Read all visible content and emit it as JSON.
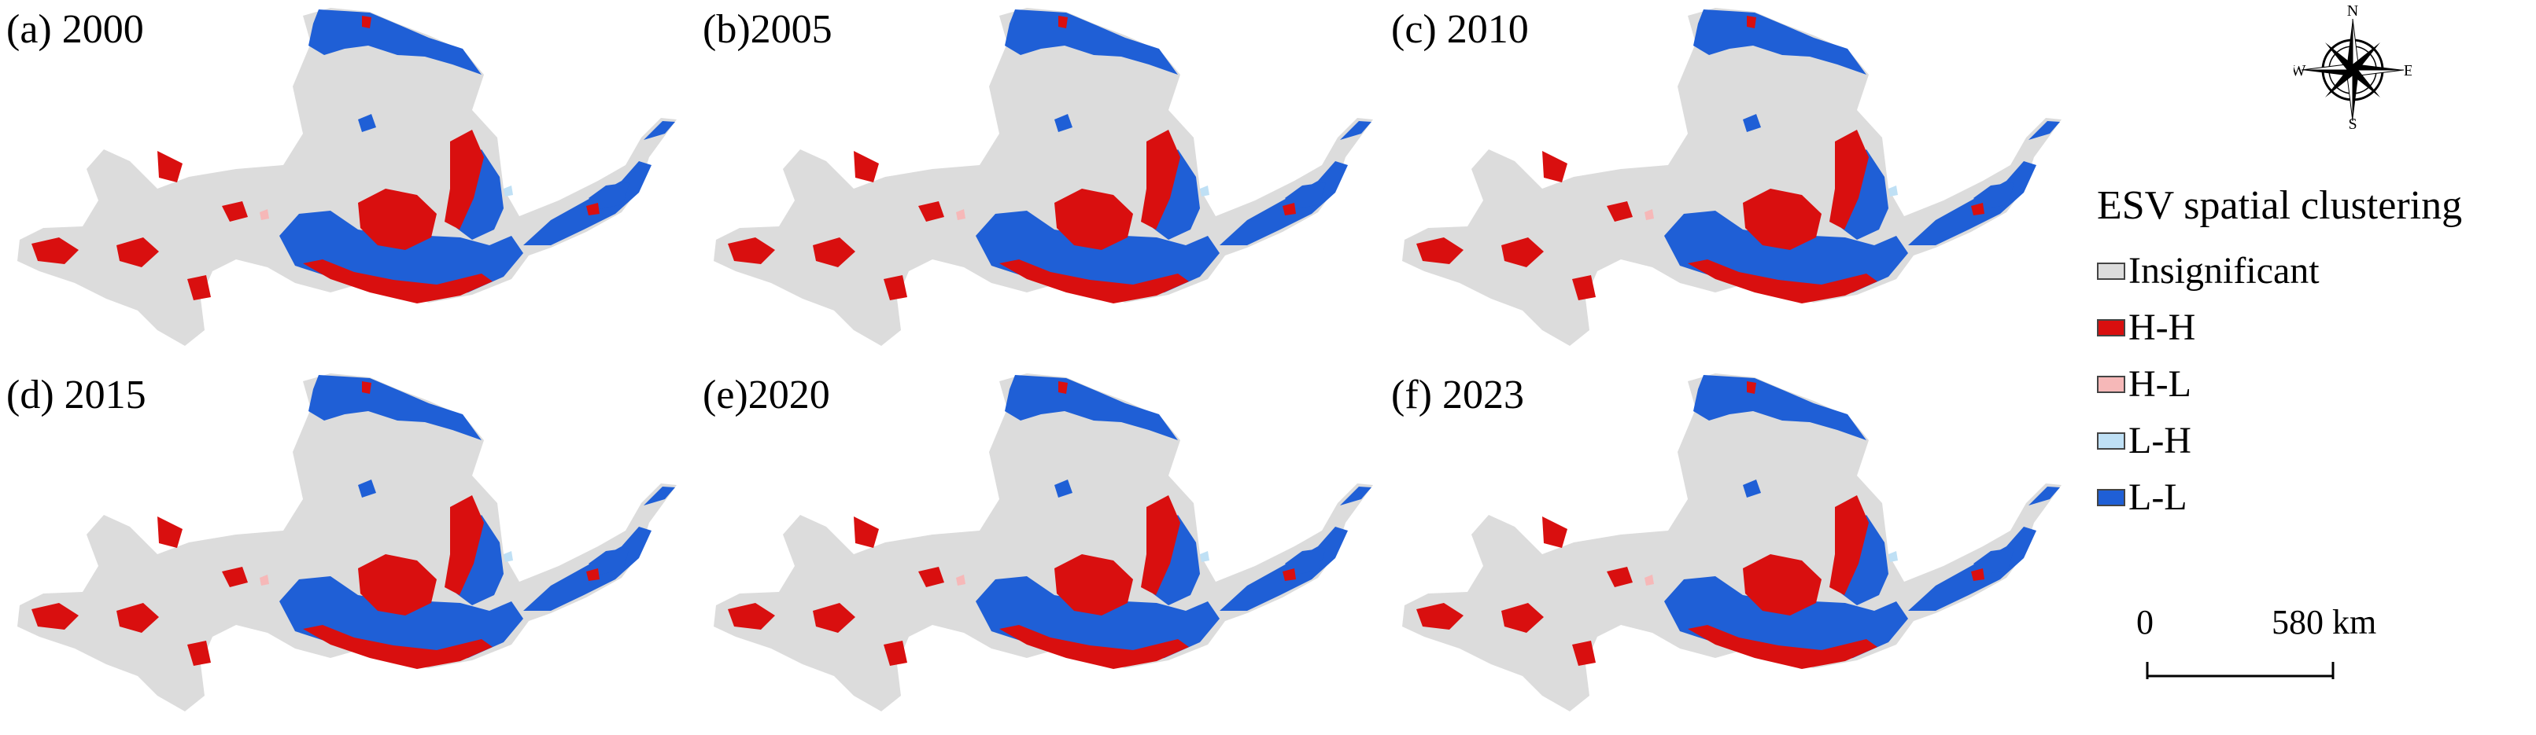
{
  "panels": [
    {
      "label": "(a) 2000"
    },
    {
      "label": "(b)2005"
    },
    {
      "label": "(c) 2010"
    },
    {
      "label": "(d) 2015"
    },
    {
      "label": "(e)2020"
    },
    {
      "label": "(f) 2023"
    }
  ],
  "legend": {
    "title": "ESV spatial clustering",
    "items": [
      {
        "label": "Insignificant",
        "color": "#dcdcdc"
      },
      {
        "label": "H-H",
        "color": "#d90f0f"
      },
      {
        "label": "H-L",
        "color": "#f6b8b8"
      },
      {
        "label": "L-H",
        "color": "#bfe0f5"
      },
      {
        "label": "L-L",
        "color": "#1f5fd6"
      }
    ]
  },
  "compass": {
    "n": "N",
    "s": "S",
    "e": "E",
    "w": "W"
  },
  "scale_bar": {
    "start": "0",
    "end": "580 km"
  }
}
